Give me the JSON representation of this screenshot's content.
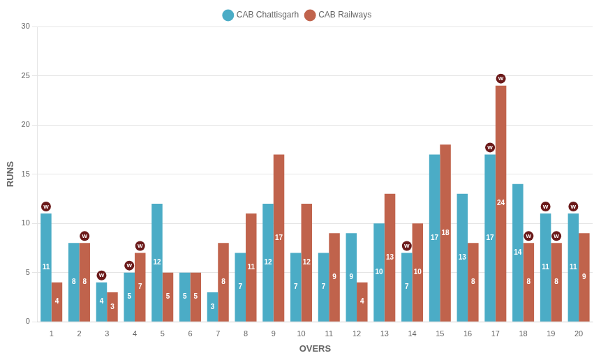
{
  "chart_data": {
    "type": "bar",
    "categories": [
      1,
      2,
      3,
      4,
      5,
      6,
      7,
      8,
      9,
      10,
      11,
      12,
      13,
      14,
      15,
      16,
      17,
      18,
      19,
      20
    ],
    "series": [
      {
        "name": "CAB Chattisgarh",
        "color": "#4bacc6",
        "values": [
          11,
          8,
          4,
          5,
          12,
          5,
          3,
          7,
          12,
          7,
          7,
          9,
          10,
          7,
          17,
          13,
          17,
          14,
          11,
          11
        ],
        "wicket_overs": [
          1,
          3,
          4,
          14,
          17,
          19,
          20
        ]
      },
      {
        "name": "CAB Railways",
        "color": "#c0634c",
        "values": [
          4,
          8,
          3,
          7,
          5,
          5,
          8,
          11,
          17,
          12,
          9,
          4,
          13,
          10,
          18,
          8,
          24,
          8,
          8,
          9
        ],
        "wicket_overs": [
          2,
          4,
          17,
          18,
          19
        ]
      }
    ],
    "wicket_label": "W",
    "wicket_color": "#6b1a1a",
    "xlabel": "OVERS",
    "ylabel": "RUNS",
    "ylim": [
      0,
      30
    ],
    "yticks": [
      0,
      5,
      10,
      15,
      20,
      25,
      30
    ],
    "grid": true,
    "legend": "top",
    "data_labels": true
  }
}
